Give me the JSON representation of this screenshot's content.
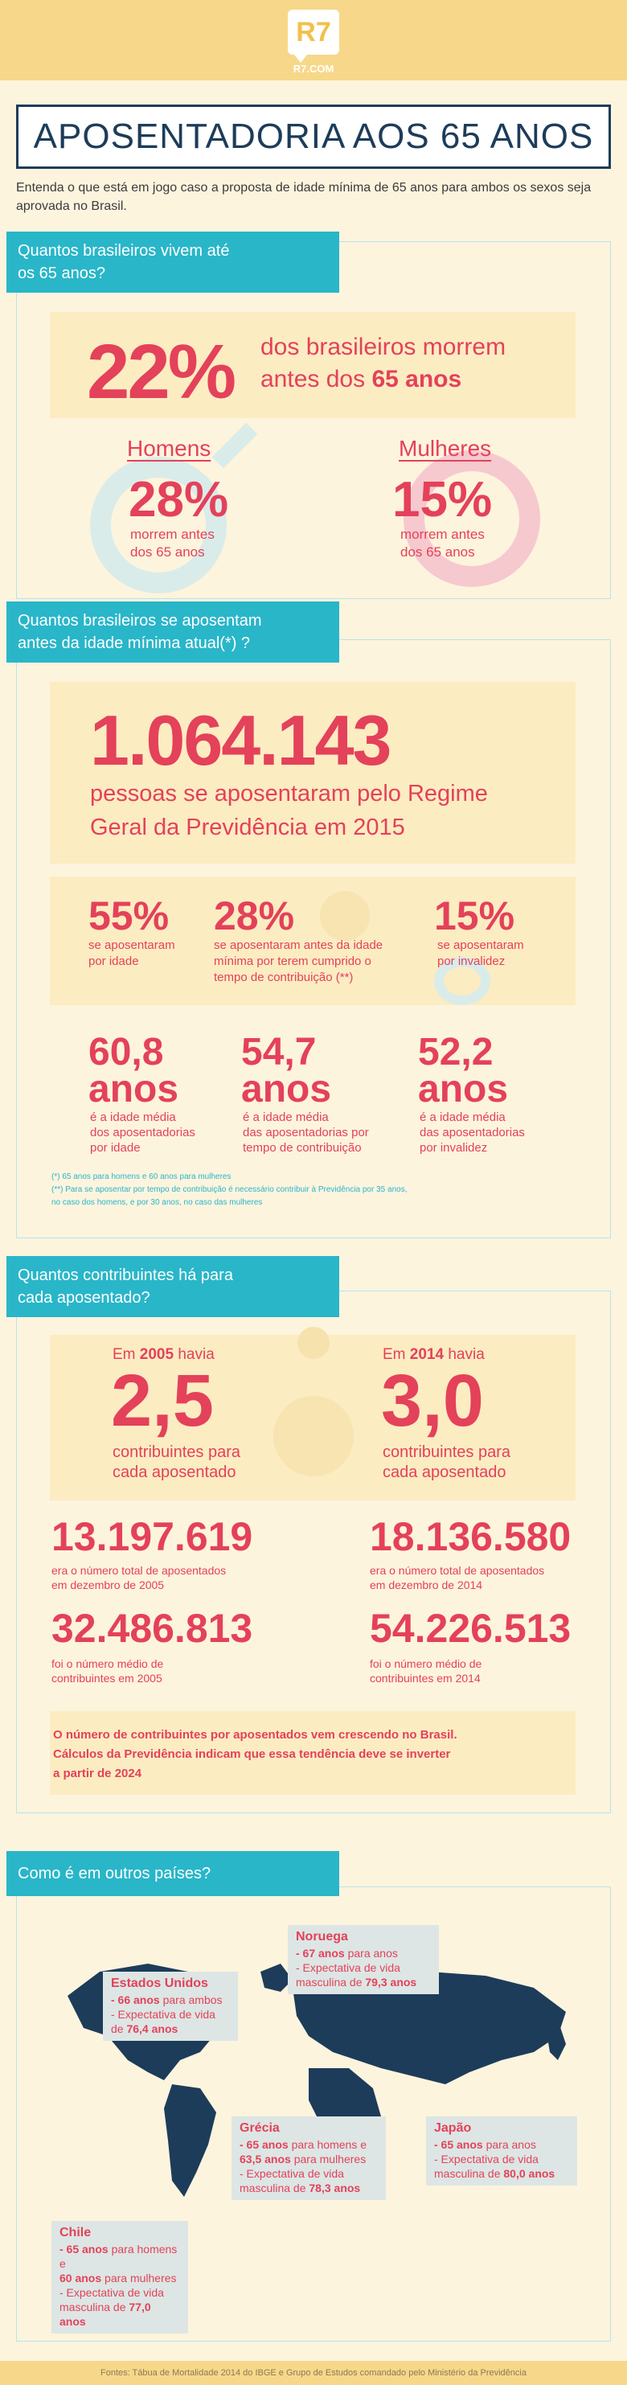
{
  "brand": {
    "logo": "R7",
    "site": "R7.COM"
  },
  "title": "APOSENTADORIA AOS 65 ANOS",
  "intro": "Entenda o que está em jogo caso a proposta de idade mínima de 65 anos para ambos os sexos seja aprovada no Brasil.",
  "section1": {
    "heading_line1": "Quantos brasileiros vivem até",
    "heading_line2": "os 65 anos?",
    "stat_value": "22%",
    "stat_text_line1": "dos brasileiros morrem",
    "stat_text_line2_pre": "antes dos ",
    "stat_text_line2_bold": "65 anos",
    "men": {
      "label": "Homens",
      "value": "28%",
      "text_line1": "morrem antes",
      "text_line2": "dos 65 anos"
    },
    "women": {
      "label": "Mulheres",
      "value": "15%",
      "text_line1": "morrem antes",
      "text_line2": "dos 65 anos"
    }
  },
  "section2": {
    "heading_line1": "Quantos brasileiros se aposentam",
    "heading_line2": "antes da idade mínima atual(*) ?",
    "total": "1.064.143",
    "total_text_line1": "pessoas se aposentaram pelo Regime",
    "total_text_line2": "Geral da Previdência em 2015",
    "by_age": {
      "value": "55%",
      "text_line1": "se aposentaram",
      "text_line2": "por idade"
    },
    "by_contribution": {
      "value": "28%",
      "text_line1": "se aposentaram antes da idade",
      "text_line2": "mínima por terem cumprido o",
      "text_line3": "tempo de contribuição (**)"
    },
    "by_disability": {
      "value": "15%",
      "text_line1": "se aposentaram",
      "text_line2": "por invalidez"
    },
    "avg_age": {
      "value": "60,8",
      "unit": "anos",
      "text_line1": "é a idade média",
      "text_line2": "dos aposentadorias",
      "text_line3": "por idade"
    },
    "avg_contribution": {
      "value": "54,7",
      "unit": "anos",
      "text_line1": "é a idade média",
      "text_line2": "das aposentadorias por",
      "text_line3": "tempo de contribuição"
    },
    "avg_disability": {
      "value": "52,2",
      "unit": "anos",
      "text_line1": "é a idade média",
      "text_line2": "das aposentadorias",
      "text_line3": "por invalidez"
    },
    "note1": "(*) 65 anos para homens e 60 anos para mulheres",
    "note2": "(**) Para se aposentar por tempo de contribuição é necessário contribuir à Previdência por 35 anos,",
    "note3": "no caso dos homens, e por 30 anos, no caso das mulheres"
  },
  "section3": {
    "heading_line1": "Quantos contribuintes há para",
    "heading_line2": "cada aposentado?",
    "y2005": {
      "pre": "Em ",
      "year": "2005",
      "post": " havia",
      "value": "2,5",
      "text_line1": "contribuintes para",
      "text_line2": "cada aposentado"
    },
    "y2014": {
      "pre": "Em ",
      "year": "2014",
      "post": " havia",
      "value": "3,0",
      "text_line1": "contribuintes para",
      "text_line2": "cada aposentado"
    },
    "retirees2005": {
      "value": "13.197.619",
      "text_line1": "era o número total de aposentados",
      "text_line2": "em dezembro de 2005"
    },
    "retirees2014": {
      "value": "18.136.580",
      "text_line1": "era o número total de aposentados",
      "text_line2": "em dezembro de 2014"
    },
    "contrib2005": {
      "value": "32.486.813",
      "text_line1": "foi o número médio de",
      "text_line2": "contribuintes em 2005"
    },
    "contrib2014": {
      "value": "54.226.513",
      "text_line1": "foi o número médio de",
      "text_line2": "contribuintes em 2014"
    },
    "summary_line1": "O número de contribuintes por aposentados vem crescendo no Brasil.",
    "summary_line2": "Cálculos da Previdência indicam que essa tendência deve se inverter",
    "summary_line3": "a partir de 2024"
  },
  "section4": {
    "heading": "Como é em outros países?",
    "usa": {
      "name": "Estados Unidos",
      "l1_bold": "- 66 anos",
      "l1_rest": " para ambos",
      "l2": "- Expectativa de vida",
      "l3_pre": "de ",
      "l3_bold": "76,4 anos"
    },
    "norway": {
      "name": "Noruega",
      "l1_bold": "- 67 anos",
      "l1_rest": " para anos",
      "l2": "- Expectativa de vida",
      "l3_pre": "masculina de ",
      "l3_bold": "79,3 anos"
    },
    "greece": {
      "name": "Grécia",
      "l1_bold": "- 65 anos",
      "l1_rest": " para homens e",
      "l2_bold": "63,5 anos",
      "l2_rest": " para mulheres",
      "l3": "- Expectativa de vida",
      "l4_pre": "masculina de ",
      "l4_bold": "78,3 anos"
    },
    "japan": {
      "name": "Japão",
      "l1_bold": "- 65 anos",
      "l1_rest": " para anos",
      "l2": "- Expectativa de vida",
      "l3_pre": "masculina de ",
      "l3_bold": "80,0 anos"
    },
    "chile": {
      "name": "Chile",
      "l1_bold": "- 65 anos",
      "l1_rest": " para homens e",
      "l2_bold": "60 anos",
      "l2_rest": " para mulheres",
      "l3": "- Expectativa de vida",
      "l4_pre": "masculina de ",
      "l4_bold": "77,0 anos"
    }
  },
  "footer": "Fontes: Tábua de Mortalidade 2014 do IBGE e Grupo de Estudos comandado pelo Ministério da Previdência",
  "colors": {
    "accent": "#e4415a",
    "teal": "#29b6c9",
    "navy": "#1d3c5a",
    "cream": "#fdf4de",
    "gold": "#f7d88a"
  }
}
